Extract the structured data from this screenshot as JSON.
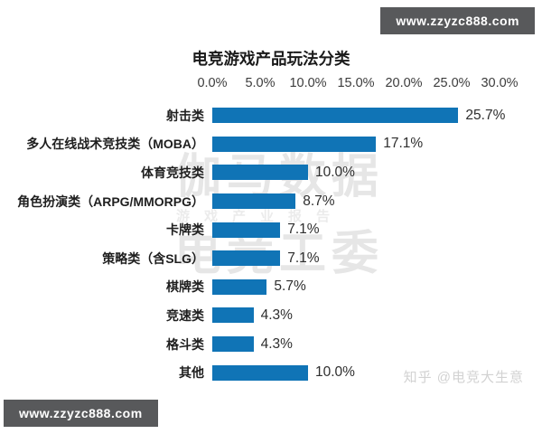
{
  "chart_data": {
    "type": "bar",
    "orientation": "horizontal",
    "title": "电竞游戏产品玩法分类",
    "categories": [
      "射击类",
      "多人在线战术竞技类（MOBA）",
      "体育竞技类",
      "角色扮演类（ARPG/MMORPG）",
      "卡牌类",
      "策略类（含SLG）",
      "棋牌类",
      "竞速类",
      "格斗类",
      "其他"
    ],
    "values": [
      25.7,
      17.1,
      10.0,
      8.7,
      7.1,
      7.1,
      5.7,
      4.3,
      4.3,
      10.0
    ],
    "value_labels": [
      "25.7%",
      "17.1%",
      "10.0%",
      "8.7%",
      "7.1%",
      "7.1%",
      "5.7%",
      "4.3%",
      "4.3%",
      "10.0%"
    ],
    "x_ticks": [
      "0.0%",
      "5.0%",
      "10.0%",
      "15.0%",
      "20.0%",
      "25.0%",
      "30.0%"
    ],
    "x_tick_values": [
      0,
      5,
      10,
      15,
      20,
      25,
      30
    ],
    "xlim": [
      0,
      30
    ],
    "bar_color": "#1074b6",
    "grid": false,
    "legend_position": "none"
  },
  "watermarks": {
    "site_badge": "www.zzyzc888.com",
    "center_line1": "伽马数据",
    "center_line2": "游戏产业报告",
    "center_line3": "电竞工委",
    "credit": "知乎 @电竞大生意"
  }
}
